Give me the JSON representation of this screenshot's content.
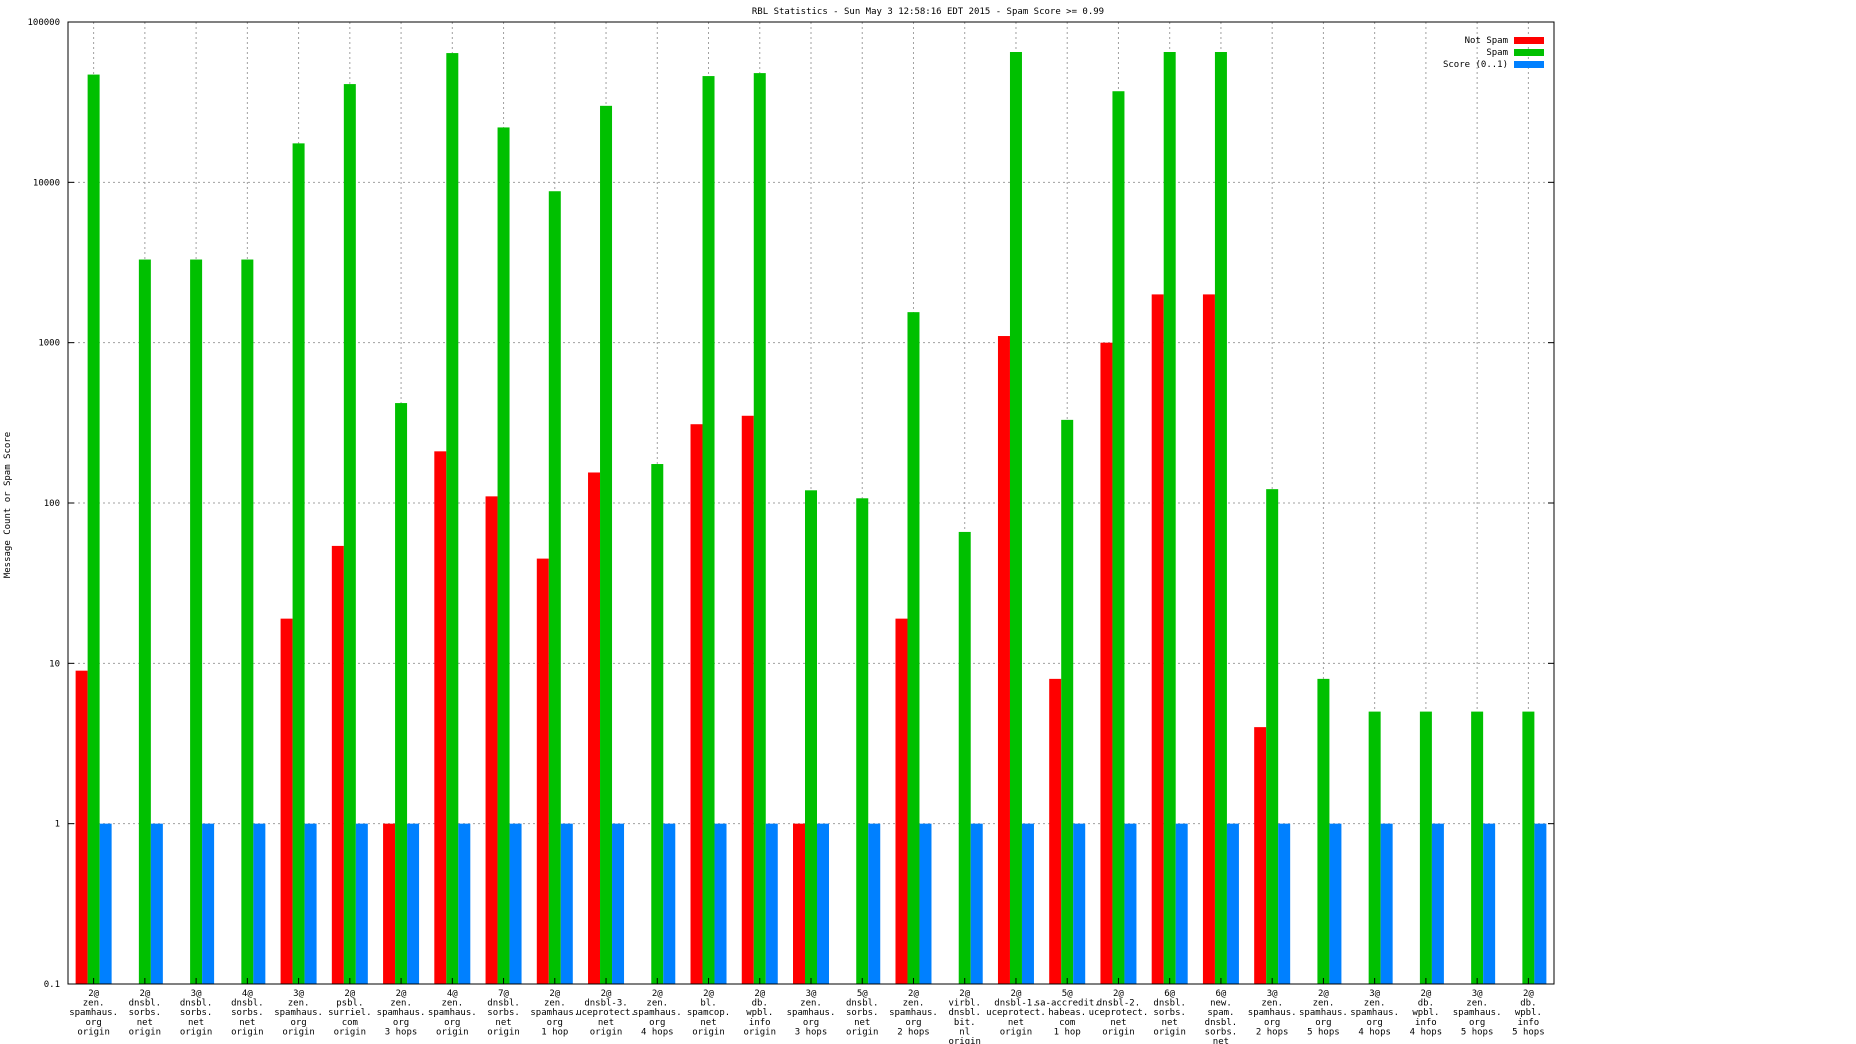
{
  "chart_data": {
    "type": "bar",
    "title": "RBL Statistics - Sun May  3 12:58:16 EDT 2015 - Spam Score >= 0.99",
    "xlabel": "",
    "ylabel": "Message Count or Spam Score",
    "yscale": "log",
    "ylim": [
      0.1,
      100000
    ],
    "yticks": [
      {
        "value": 0.1,
        "label": "0.1"
      },
      {
        "value": 1,
        "label": "1"
      },
      {
        "value": 10,
        "label": "10"
      },
      {
        "value": 100,
        "label": "100"
      },
      {
        "value": 1000,
        "label": "1000"
      },
      {
        "value": 10000,
        "label": "10000"
      },
      {
        "value": 100000,
        "label": "100000"
      }
    ],
    "grid": true,
    "legend_position": "top-right",
    "categories": [
      [
        "2@",
        "zen.",
        "spamhaus.",
        "org",
        "origin"
      ],
      [
        "2@",
        "dnsbl.",
        "sorbs.",
        "net",
        "origin"
      ],
      [
        "3@",
        "dnsbl.",
        "sorbs.",
        "net",
        "origin"
      ],
      [
        "4@",
        "dnsbl.",
        "sorbs.",
        "net",
        "origin"
      ],
      [
        "3@",
        "zen.",
        "spamhaus.",
        "org",
        "origin"
      ],
      [
        "2@",
        "psbl.",
        "surriel.",
        "com",
        "origin"
      ],
      [
        "2@",
        "zen.",
        "spamhaus.",
        "org",
        "3 hops"
      ],
      [
        "4@",
        "zen.",
        "spamhaus.",
        "org",
        "origin"
      ],
      [
        "7@",
        "dnsbl.",
        "sorbs.",
        "net",
        "origin"
      ],
      [
        "2@",
        "zen.",
        "spamhaus.",
        "org",
        "1 hop"
      ],
      [
        "2@",
        "dnsbl-3.",
        "uceprotect.",
        "net",
        "origin"
      ],
      [
        "2@",
        "zen.",
        "spamhaus.",
        "org",
        "4 hops"
      ],
      [
        "2@",
        "bl.",
        "spamcop.",
        "net",
        "origin"
      ],
      [
        "2@",
        "db.",
        "wpbl.",
        "info",
        "origin"
      ],
      [
        "3@",
        "zen.",
        "spamhaus.",
        "org",
        "3 hops"
      ],
      [
        "5@",
        "dnsbl.",
        "sorbs.",
        "net",
        "origin"
      ],
      [
        "2@",
        "zen.",
        "spamhaus.",
        "org",
        "2 hops"
      ],
      [
        "2@",
        "virbl.",
        "dnsbl.",
        "bit.",
        "nl",
        "origin"
      ],
      [
        "2@",
        "dnsbl-1.",
        "uceprotect.",
        "net",
        "origin"
      ],
      [
        "5@",
        "sa-accredit.",
        "habeas.",
        "com",
        "1 hop"
      ],
      [
        "2@",
        "dnsbl-2.",
        "uceprotect.",
        "net",
        "origin"
      ],
      [
        "6@",
        "dnsbl.",
        "sorbs.",
        "net",
        "origin"
      ],
      [
        "6@",
        "new.",
        "spam.",
        "dnsbl.",
        "sorbs.",
        "net",
        "origin"
      ],
      [
        "3@",
        "zen.",
        "spamhaus.",
        "org",
        "2 hops"
      ],
      [
        "2@",
        "zen.",
        "spamhaus.",
        "org",
        "5 hops"
      ],
      [
        "3@",
        "zen.",
        "spamhaus.",
        "org",
        "4 hops"
      ],
      [
        "2@",
        "db.",
        "wpbl.",
        "info",
        "4 hops"
      ],
      [
        "3@",
        "zen.",
        "spamhaus.",
        "org",
        "5 hops"
      ],
      [
        "2@",
        "db.",
        "wpbl.",
        "info",
        "5 hops"
      ]
    ],
    "series": [
      {
        "name": "Not Spam",
        "color": "#ff0000",
        "values": [
          9,
          0,
          0,
          0,
          19,
          54,
          1,
          210,
          110,
          45,
          155,
          0,
          310,
          350,
          1,
          0,
          19,
          0,
          1100,
          8,
          1000,
          2000,
          2000,
          4,
          0,
          0,
          0,
          0,
          0
        ]
      },
      {
        "name": "Spam",
        "color": "#00c000",
        "values": [
          47000,
          3300,
          3300,
          3300,
          17500,
          41000,
          420,
          64000,
          22000,
          8800,
          30000,
          175,
          46000,
          48000,
          120,
          107,
          1550,
          66,
          65000,
          330,
          37000,
          65000,
          65000,
          122,
          8,
          5,
          5,
          5,
          5
        ]
      },
      {
        "name": "Score (0..1)",
        "color": "#0080ff",
        "values": [
          1,
          1,
          1,
          1,
          1,
          1,
          1,
          1,
          1,
          1,
          1,
          1,
          1,
          1,
          1,
          1,
          1,
          1,
          1,
          1,
          1,
          1,
          1,
          1,
          1,
          1,
          1,
          1,
          1
        ]
      }
    ]
  }
}
